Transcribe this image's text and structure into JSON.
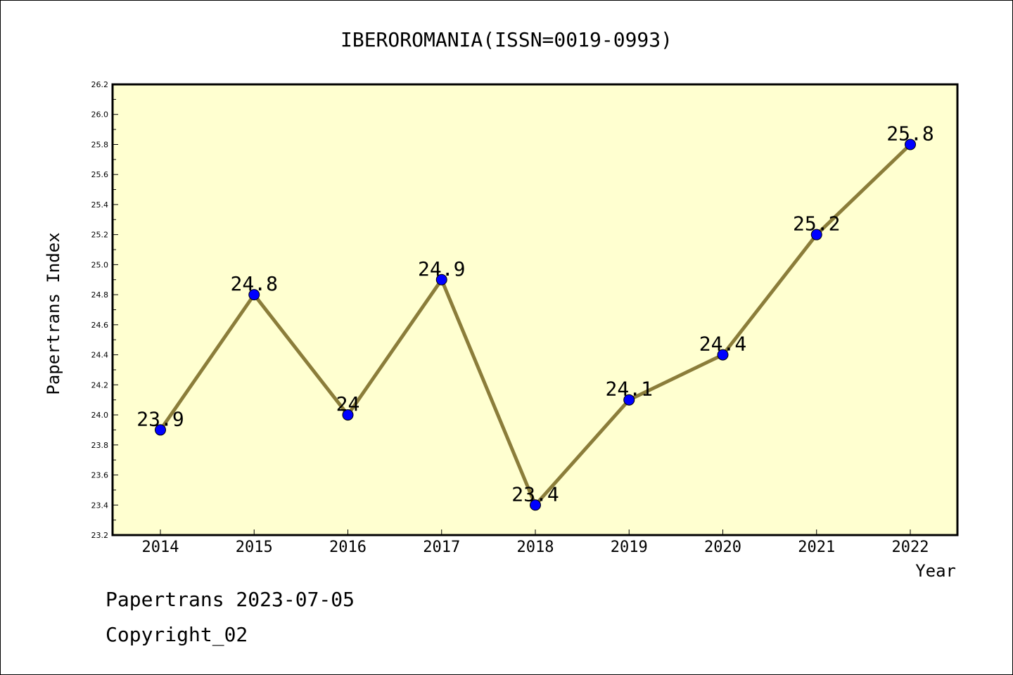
{
  "chart_data": {
    "type": "line",
    "title": "IBEROROMANIA(ISSN=0019-0993)",
    "xlabel": "Year",
    "ylabel": "Papertrans Index",
    "categories": [
      "2014",
      "2015",
      "2016",
      "2017",
      "2018",
      "2019",
      "2020",
      "2021",
      "2022"
    ],
    "series": [
      {
        "values": [
          23.9,
          24.8,
          24.0,
          24.9,
          23.4,
          24.1,
          24.4,
          25.2,
          25.8
        ],
        "labels": [
          "23.9",
          "24.8",
          "24",
          "24.9",
          "23.4",
          "24.1",
          "24.4",
          "25.2",
          "25.8"
        ],
        "line_color": "#8b7d3a",
        "marker_color": "#0000ff"
      }
    ],
    "ylim": [
      23.2,
      26.2
    ],
    "yticks": [
      "23.2",
      "23.4",
      "23.6",
      "23.8",
      "24.0",
      "24.2",
      "24.4",
      "24.6",
      "24.8",
      "25.0",
      "25.2",
      "25.4",
      "25.6",
      "25.8",
      "26.0",
      "26.2"
    ],
    "plot_background": "#ffffd0",
    "grid": false
  },
  "footer": {
    "date_line": "Papertrans 2023-07-05",
    "copyright": "Copyright_02"
  }
}
